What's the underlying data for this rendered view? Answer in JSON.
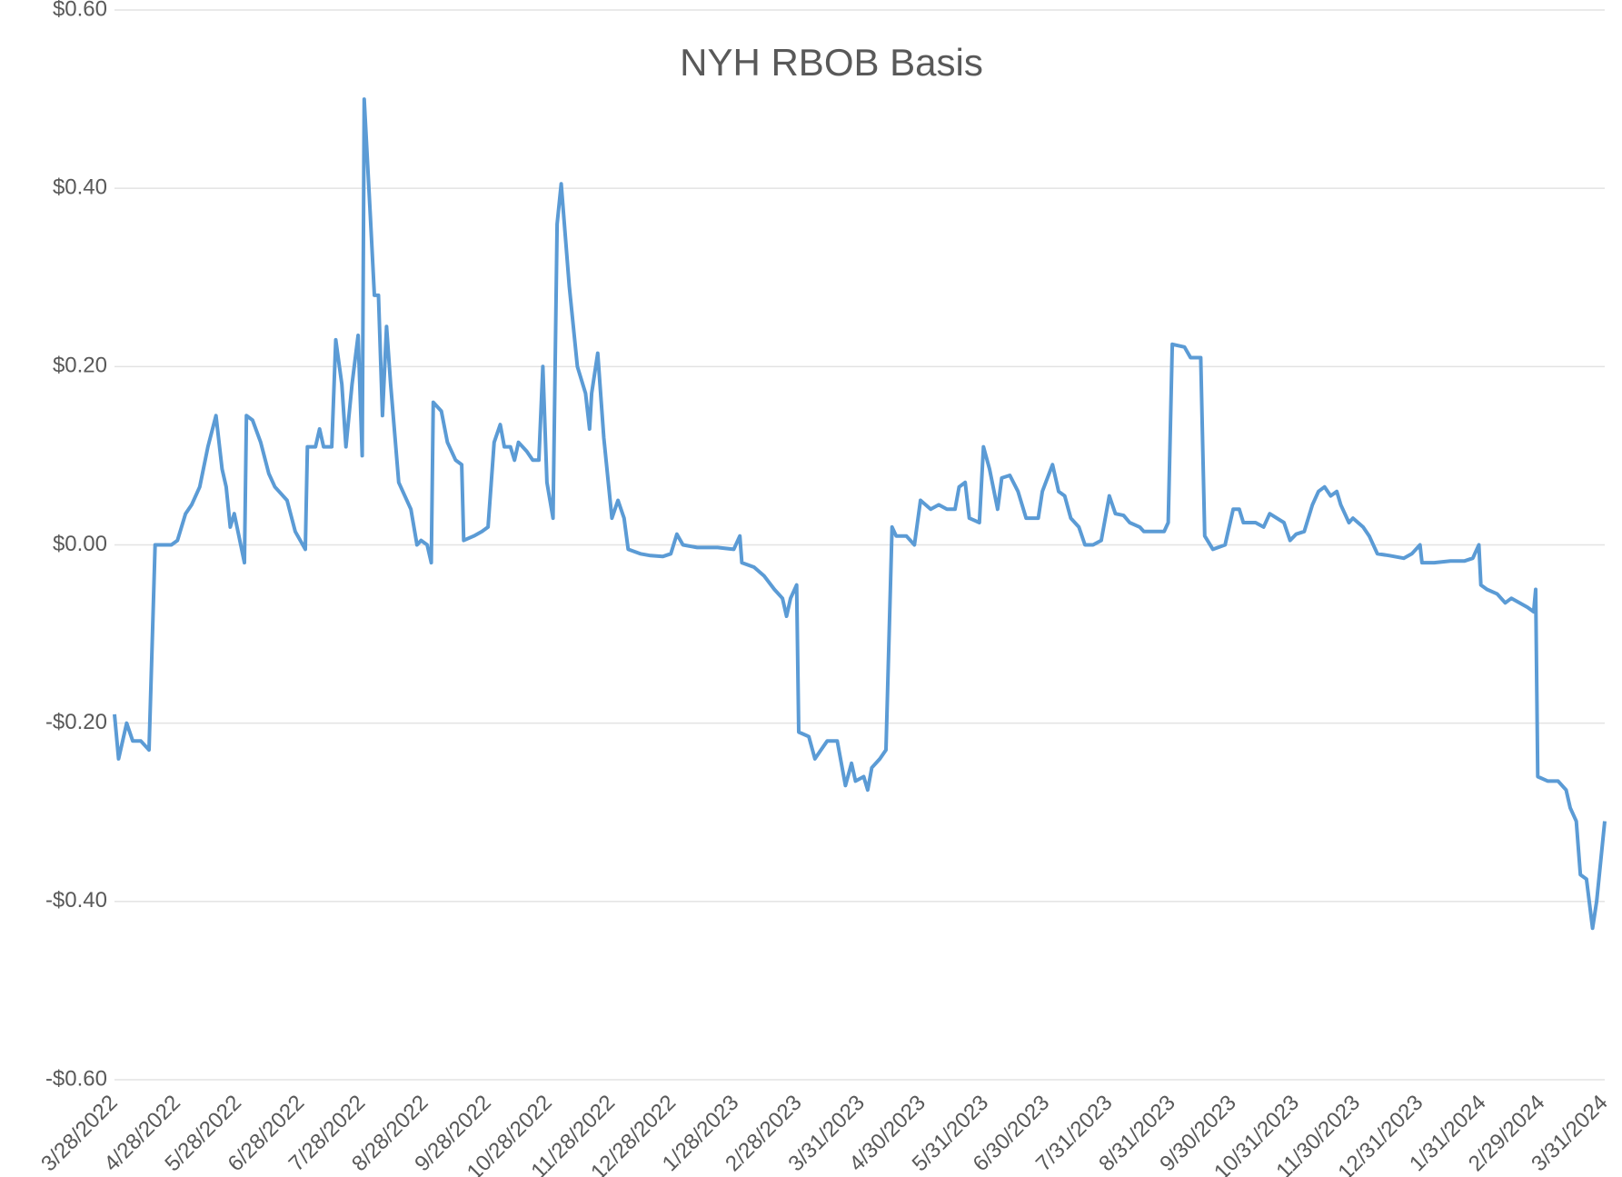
{
  "chart_data": {
    "type": "line",
    "title": "NYH RBOB Basis",
    "color": "#5b9bd5",
    "grid": true,
    "x": [
      "3/28/2022",
      "3/30/2022",
      "4/3/2022",
      "4/6/2022",
      "4/10/2022",
      "4/14/2022",
      "4/17/2022",
      "4/25/2022",
      "4/28/2022",
      "5/2/2022",
      "5/5/2022",
      "5/9/2022",
      "5/13/2022",
      "5/17/2022",
      "5/20/2022",
      "5/22/2022",
      "5/24/2022",
      "5/26/2022",
      "5/31/2022",
      "6/1/2022",
      "6/4/2022",
      "6/8/2022",
      "6/12/2022",
      "6/15/2022",
      "6/21/2022",
      "6/25/2022",
      "6/30/2022",
      "7/1/2022",
      "7/5/2022",
      "7/7/2022",
      "7/9/2022",
      "7/13/2022",
      "7/15/2022",
      "7/18/2022",
      "7/20/2022",
      "7/23/2022",
      "7/26/2022",
      "7/28/2022",
      "7/29/2022",
      "8/1/2022",
      "8/3/2022",
      "8/5/2022",
      "8/7/2022",
      "8/9/2022",
      "8/11/2022",
      "8/15/2022",
      "8/18/2022",
      "8/21/2022",
      "8/24/2022",
      "8/26/2022",
      "8/29/2022",
      "8/31/2022",
      "9/1/2022",
      "9/5/2022",
      "9/8/2022",
      "9/12/2022",
      "9/15/2022",
      "9/16/2022",
      "9/21/2022",
      "9/25/2022",
      "9/28/2022",
      "10/1/2022",
      "10/4/2022",
      "10/6/2022",
      "10/9/2022",
      "10/11/2022",
      "10/13/2022",
      "10/17/2022",
      "10/20/2022",
      "10/23/2022",
      "10/25/2022",
      "10/27/2022",
      "10/30/2022",
      "11/1/2022",
      "11/3/2022",
      "11/7/2022",
      "11/11/2022",
      "11/15/2022",
      "11/17/2022",
      "11/18/2022",
      "11/21/2022",
      "11/24/2022",
      "11/28/2022",
      "12/1/2022",
      "12/4/2022",
      "12/6/2022",
      "12/12/2022",
      "12/17/2022",
      "12/23/2022",
      "12/27/2022",
      "12/30/2022",
      "1/2/2023",
      "1/9/2023",
      "1/19/2023",
      "1/27/2023",
      "1/30/2023",
      "1/31/2023",
      "2/6/2023",
      "2/11/2023",
      "2/16/2023",
      "2/20/2023",
      "2/22/2023",
      "2/24/2023",
      "2/27/2023",
      "2/28/2023",
      "3/5/2023",
      "3/8/2023",
      "3/11/2023",
      "3/14/2023",
      "3/19/2023",
      "3/23/2023",
      "3/26/2023",
      "3/28/2023",
      "4/1/2023",
      "4/3/2023",
      "4/5/2023",
      "4/9/2023",
      "4/12/2023",
      "4/15/2023",
      "4/17/2023",
      "4/22/2023",
      "4/26/2023",
      "4/29/2023",
      "5/4/2023",
      "5/8/2023",
      "5/12/2023",
      "5/16/2023",
      "5/18/2023",
      "5/21/2023",
      "5/23/2023",
      "5/28/2023",
      "5/30/2023",
      "6/2/2023",
      "6/6/2023",
      "6/8/2023",
      "6/12/2023",
      "6/16/2023",
      "6/20/2023",
      "6/26/2023",
      "6/28/2023",
      "7/3/2023",
      "7/6/2023",
      "7/9/2023",
      "7/12/2023",
      "7/16/2023",
      "7/19/2023",
      "7/23/2023",
      "7/27/2023",
      "7/31/2023",
      "8/3/2023",
      "8/7/2023",
      "8/10/2023",
      "8/15/2023",
      "8/17/2023",
      "8/27/2023",
      "8/29/2023",
      "8/31/2023",
      "9/6/2023",
      "9/9/2023",
      "9/14/2023",
      "9/16/2023",
      "9/20/2023",
      "9/26/2023",
      "9/30/2023",
      "10/3/2023",
      "10/5/2023",
      "10/11/2023",
      "10/15/2023",
      "10/18/2023",
      "10/25/2023",
      "10/28/2023",
      "10/31/2023",
      "11/4/2023",
      "11/8/2023",
      "11/11/2023",
      "11/14/2023",
      "11/17/2023",
      "11/20/2023",
      "11/22/2023",
      "11/26/2023",
      "11/28/2023",
      "12/3/2023",
      "12/6/2023",
      "12/10/2023",
      "12/16/2023",
      "12/23/2023",
      "12/27/2023",
      "12/31/2023",
      "1/1/2024",
      "1/7/2024",
      "1/15/2024",
      "1/22/2024",
      "1/26/2024",
      "1/29/2024",
      "1/30/2024",
      "2/2/2024",
      "2/7/2024",
      "2/11/2024",
      "2/14/2024",
      "2/18/2024",
      "2/22/2024",
      "2/25/2024",
      "2/26/2024",
      "2/27/2024",
      "3/3/2024",
      "3/8/2024",
      "3/12/2024",
      "3/14/2024",
      "3/17/2024",
      "3/19/2024",
      "3/22/2024",
      "3/25/2024",
      "3/27/2024",
      "3/31/2024"
    ],
    "values": [
      -0.19,
      -0.24,
      -0.2,
      -0.22,
      -0.22,
      -0.23,
      0.0,
      0.0,
      0.005,
      0.035,
      0.045,
      0.065,
      0.11,
      0.145,
      0.085,
      0.065,
      0.02,
      0.035,
      -0.02,
      0.145,
      0.14,
      0.115,
      0.08,
      0.065,
      0.05,
      0.015,
      -0.005,
      0.11,
      0.11,
      0.13,
      0.11,
      0.11,
      0.23,
      0.18,
      0.11,
      0.18,
      0.235,
      0.1,
      0.5,
      0.37,
      0.28,
      0.28,
      0.145,
      0.245,
      0.18,
      0.07,
      0.055,
      0.04,
      0.0,
      0.005,
      0.0,
      -0.02,
      0.16,
      0.15,
      0.115,
      0.095,
      0.09,
      0.005,
      0.01,
      0.015,
      0.02,
      0.115,
      0.135,
      0.11,
      0.11,
      0.095,
      0.115,
      0.105,
      0.095,
      0.095,
      0.2,
      0.07,
      0.03,
      0.36,
      0.405,
      0.29,
      0.2,
      0.17,
      0.13,
      0.17,
      0.215,
      0.12,
      0.03,
      0.05,
      0.03,
      -0.005,
      -0.01,
      -0.012,
      -0.013,
      -0.01,
      0.012,
      0.0,
      -0.003,
      -0.003,
      -0.005,
      0.01,
      -0.02,
      -0.025,
      -0.035,
      -0.05,
      -0.06,
      -0.08,
      -0.06,
      -0.045,
      -0.21,
      -0.215,
      -0.24,
      -0.23,
      -0.22,
      -0.22,
      -0.27,
      -0.245,
      -0.265,
      -0.26,
      -0.275,
      -0.25,
      -0.24,
      -0.23,
      0.02,
      0.01,
      0.01,
      0.0,
      0.05,
      0.04,
      0.045,
      0.04,
      0.04,
      0.065,
      0.07,
      0.03,
      0.025,
      0.11,
      0.085,
      0.04,
      0.075,
      0.078,
      0.06,
      0.03,
      0.03,
      0.06,
      0.09,
      0.06,
      0.055,
      0.03,
      0.02,
      0.0,
      0.0,
      0.005,
      0.055,
      0.035,
      0.033,
      0.025,
      0.02,
      0.015,
      0.015,
      0.025,
      0.225,
      0.222,
      0.21,
      0.21,
      0.01,
      -0.005,
      0.0,
      0.04,
      0.04,
      0.025,
      0.025,
      0.02,
      0.035,
      0.025,
      0.005,
      0.012,
      0.015,
      0.045,
      0.06,
      0.065,
      0.055,
      0.06,
      0.045,
      0.025,
      0.03,
      0.02,
      0.01,
      -0.01,
      -0.012,
      -0.015,
      -0.01,
      0.0,
      -0.02,
      -0.02,
      -0.018,
      -0.018,
      -0.015,
      0.0,
      -0.045,
      -0.05,
      -0.055,
      -0.065,
      -0.06,
      -0.065,
      -0.07,
      -0.075,
      -0.05,
      -0.26,
      -0.265,
      -0.265,
      -0.275,
      -0.295,
      -0.31,
      -0.37,
      -0.375,
      -0.43,
      -0.4,
      -0.31
    ],
    "xlim": [
      "3/28/2022",
      "3/31/2024"
    ],
    "xticks": [
      "3/28/2022",
      "4/28/2022",
      "5/28/2022",
      "6/28/2022",
      "7/28/2022",
      "8/28/2022",
      "9/28/2022",
      "10/28/2022",
      "11/28/2022",
      "12/28/2022",
      "1/28/2023",
      "2/28/2023",
      "3/31/2023",
      "4/30/2023",
      "5/31/2023",
      "6/30/2023",
      "7/31/2023",
      "8/31/2023",
      "9/30/2023",
      "10/31/2023",
      "11/30/2023",
      "12/31/2023",
      "1/31/2024",
      "2/29/2024",
      "3/31/2024"
    ],
    "ylim": [
      -0.6,
      0.6
    ],
    "yticks": [
      {
        "value": -0.6,
        "label": "-$0.60"
      },
      {
        "value": -0.4,
        "label": "-$0.40"
      },
      {
        "value": -0.2,
        "label": "-$0.20"
      },
      {
        "value": 0,
        "label": "$0.00"
      },
      {
        "value": 0.2,
        "label": "$0.20"
      },
      {
        "value": 0.4,
        "label": "$0.40"
      },
      {
        "value": 0.6,
        "label": "$0.60"
      }
    ]
  }
}
